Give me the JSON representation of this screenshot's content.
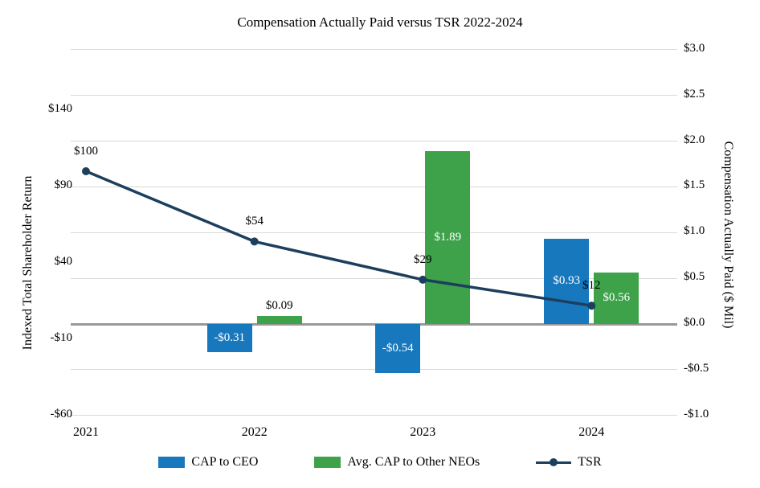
{
  "chart_data": {
    "type": "combo-bar-line",
    "title": "Compensation Actually Paid versus TSR 2022-2024",
    "categories": [
      "2021",
      "2022",
      "2023",
      "2024"
    ],
    "left_axis": {
      "title": "Indexed Total Shareholder Return",
      "min": -60,
      "max": 140,
      "major": 50,
      "ticks": [
        "$140",
        "$90",
        "$40",
        "-$10",
        "-$60"
      ]
    },
    "right_axis": {
      "title": "Compensation Actually Paid ($ Mil)",
      "min": -1.0,
      "max": 3.0,
      "major": 0.5,
      "ticks": [
        "$3.0",
        "$2.5",
        "$2.0",
        "$1.5",
        "$1.0",
        "$0.5",
        "$0.0",
        "-$0.5",
        "-$1.0"
      ]
    },
    "series": [
      {
        "name": "CAP to CEO",
        "type": "bar",
        "axis": "right",
        "color": "#1878BE",
        "values": [
          null,
          -0.31,
          -0.54,
          0.93
        ],
        "labels": [
          null,
          "-$0.31",
          "-$0.54",
          "$0.93"
        ]
      },
      {
        "name": "Avg. CAP to Other NEOs",
        "type": "bar",
        "axis": "right",
        "color": "#3EA24A",
        "values": [
          null,
          0.09,
          1.89,
          0.56
        ],
        "labels": [
          null,
          "$0.09",
          "$1.89",
          "$0.56"
        ]
      },
      {
        "name": "TSR",
        "type": "line",
        "axis": "left",
        "color": "#1C3F5E",
        "values": [
          100,
          54,
          29,
          12
        ],
        "labels": [
          "$100",
          "$54",
          "$29",
          "$12"
        ]
      }
    ],
    "grid": true,
    "grid_color": "#D9D9D9",
    "zero_line_color": "#999999",
    "legend_position": "bottom"
  }
}
